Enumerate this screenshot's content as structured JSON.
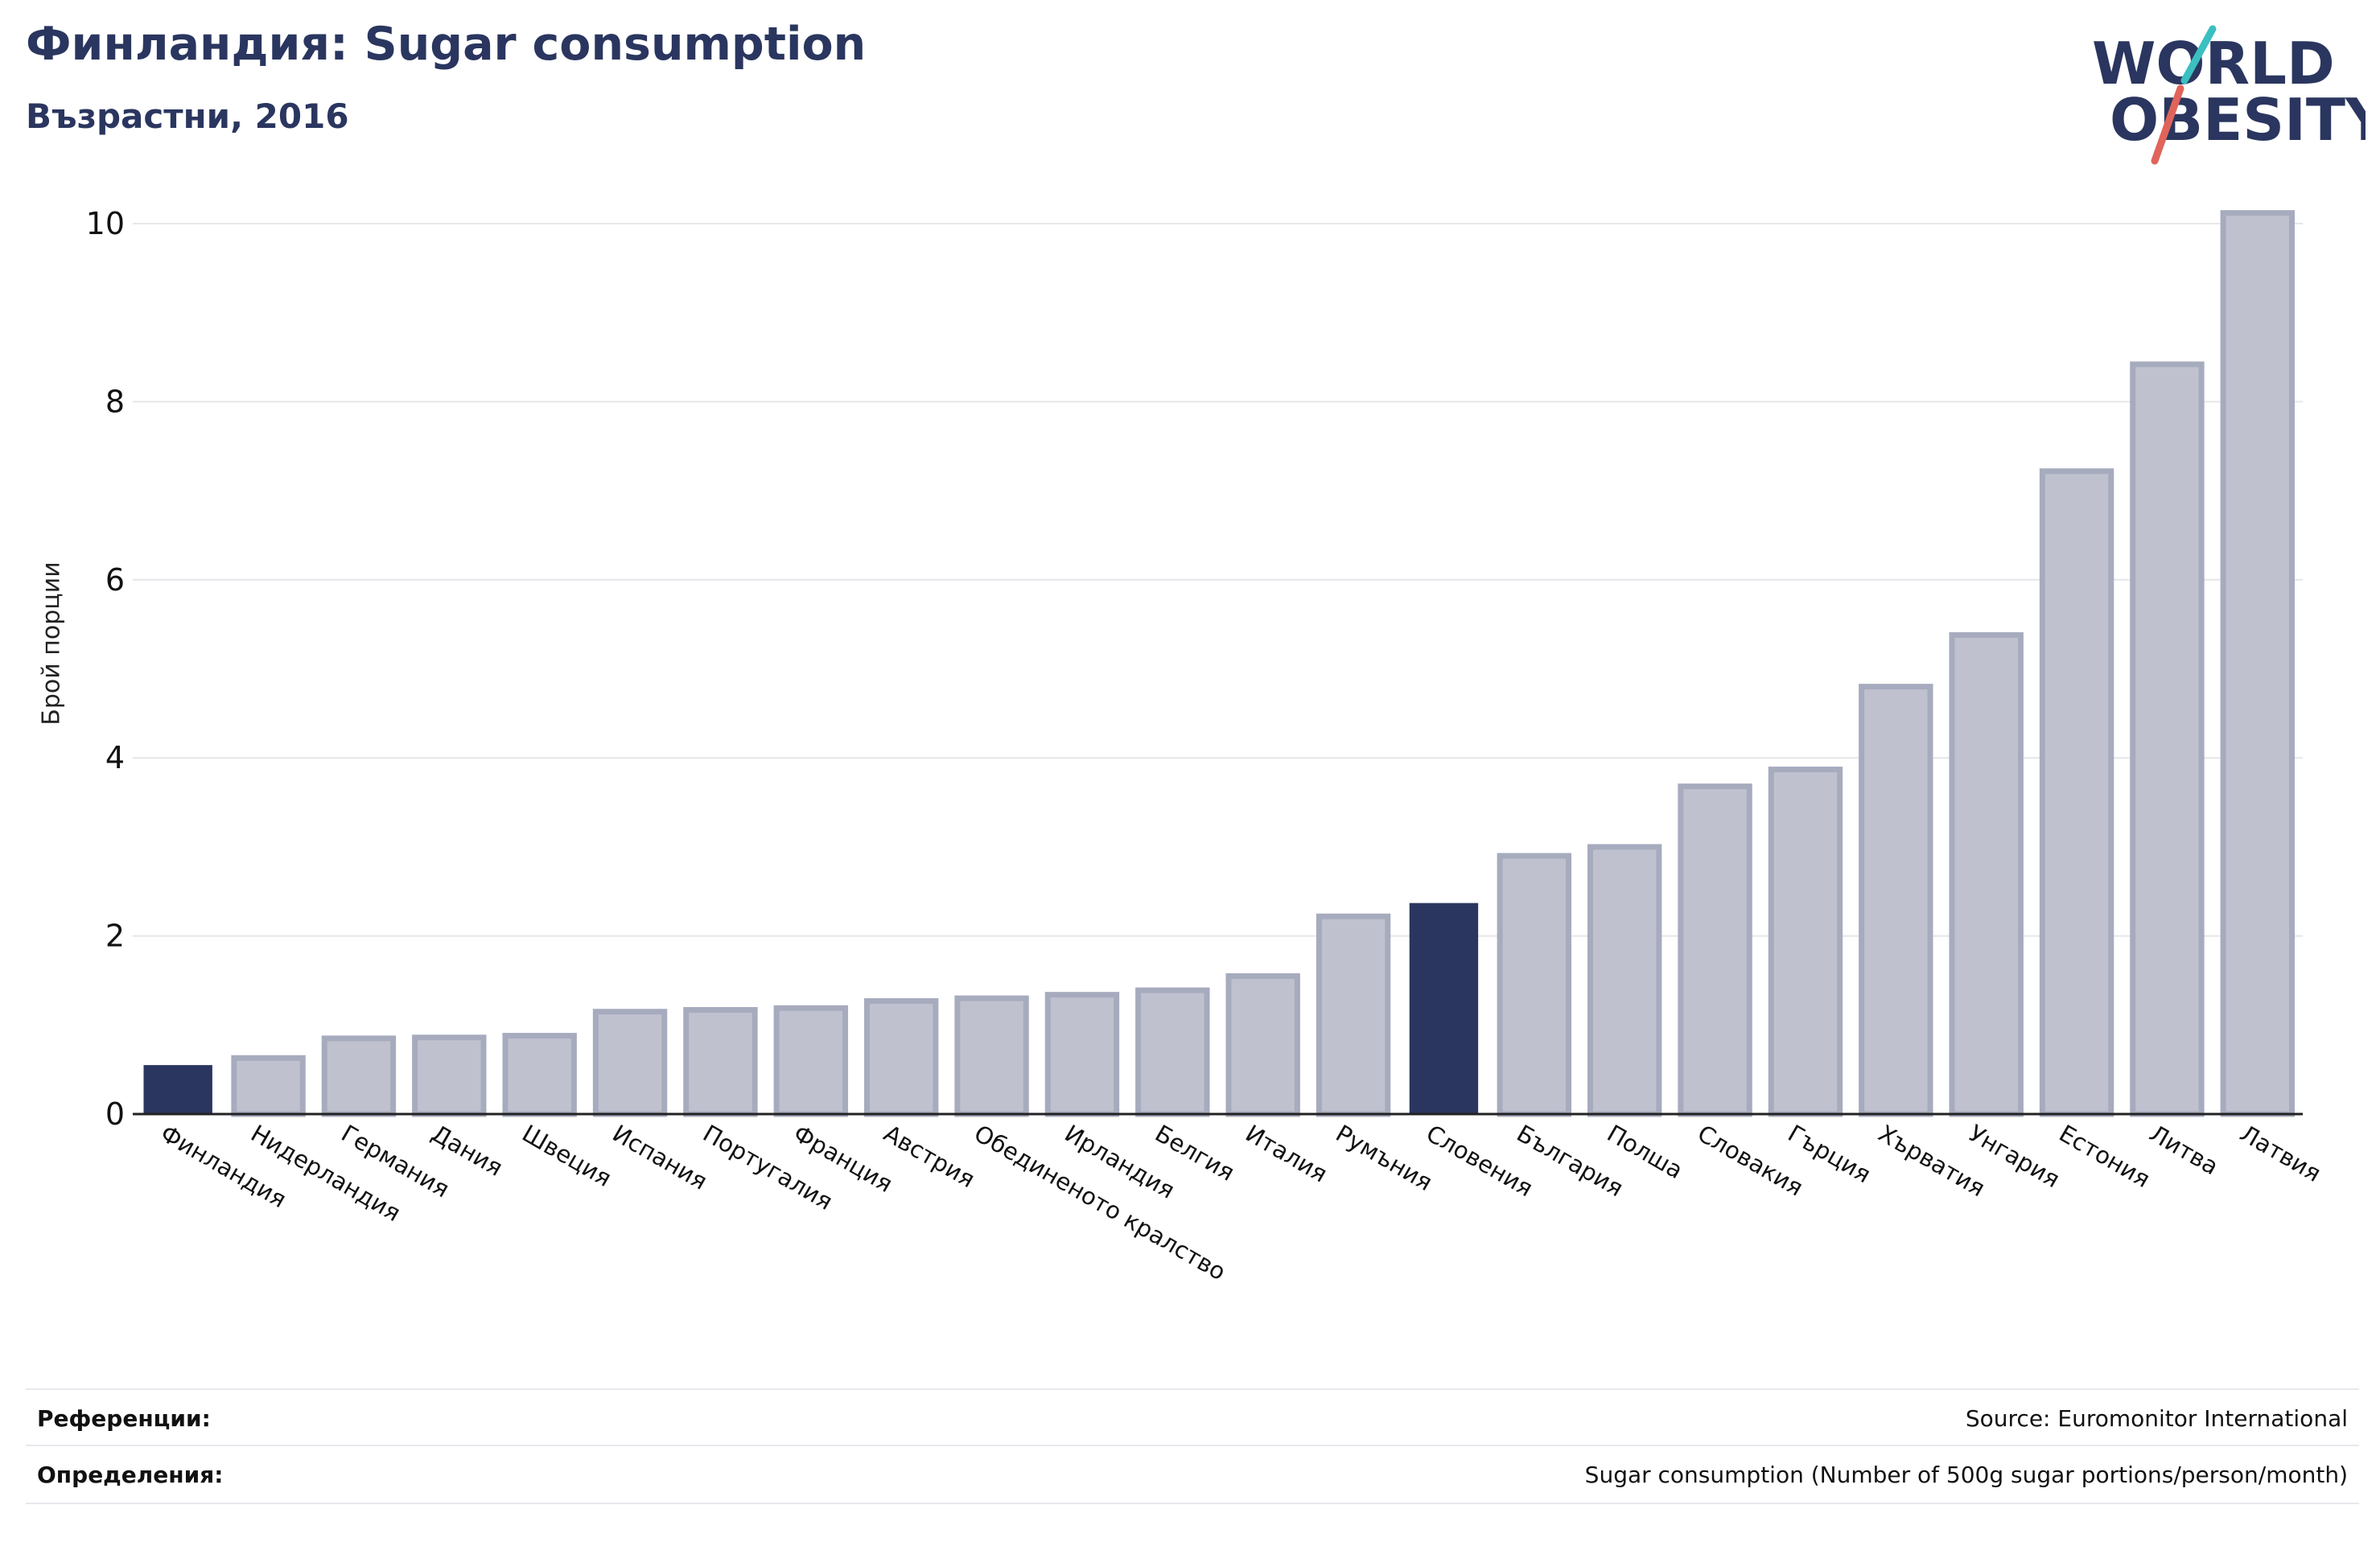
{
  "header": {
    "title": "Финландия: Sugar consumption",
    "subtitle": "Възрастни, 2016"
  },
  "logo": {
    "line1": "WORLD",
    "line2": "OBESITY"
  },
  "footer": {
    "references_label": "Референции:",
    "references_value": "Source: Euromonitor International",
    "definitions_label": "Определения:",
    "definitions_value": "Sugar consumption (Number of 500g sugar portions/person/month)"
  },
  "colors": {
    "highlight": "#2a365f",
    "bar_fill": "#bfc2ce",
    "bar_stroke": "#a7abbe",
    "grid": "#e6e6ea"
  },
  "chart_data": {
    "type": "bar",
    "ylabel": "Брой порции",
    "xlabel": "",
    "ylim": [
      0,
      10.3
    ],
    "yticks": [
      0,
      2,
      4,
      6,
      8,
      10
    ],
    "grid": true,
    "categories": [
      "Финландия",
      "Нидерландия",
      "Германия",
      "Дания",
      "Швеция",
      "Испания",
      "Португалия",
      "Франция",
      "Австрия",
      "Обединеното кралство",
      "Ирландия",
      "Белгия",
      "Италия",
      "Румъния",
      "Словения",
      "България",
      "Полша",
      "Словакия",
      "Гърция",
      "Хърватия",
      "Унгария",
      "Естония",
      "Литва",
      "Латвия"
    ],
    "values": [
      0.55,
      0.63,
      0.85,
      0.86,
      0.88,
      1.15,
      1.17,
      1.19,
      1.27,
      1.3,
      1.34,
      1.39,
      1.55,
      2.22,
      2.37,
      2.9,
      3.0,
      3.68,
      3.87,
      4.8,
      5.38,
      7.22,
      8.42,
      10.12
    ],
    "highlighted": [
      "Финландия",
      "Словения"
    ]
  }
}
